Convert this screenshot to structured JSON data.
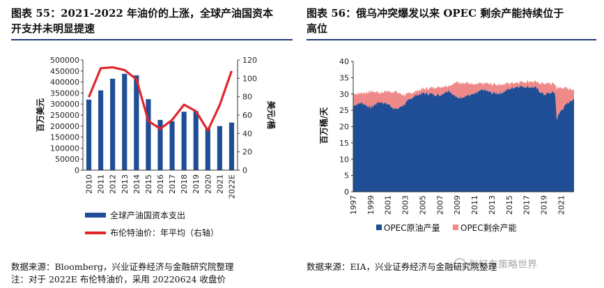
{
  "left": {
    "title": "图表 55：2021-2022 年油价的上涨，全球产油国资本开支并未明显提速",
    "title_line1": "图表 55：2021-2022 年油价的上涨，全球产油国资本",
    "title_line2": "开支并未明显提速",
    "source_line1": "数据来源：Bloomberg，兴业证券经济与金融研究院整理",
    "source_line2": "注：对于 2022E 布伦特油价，采用 20220624 收盘价"
  },
  "right": {
    "title_line1": "图表 56：俄乌冲突爆发以来 OPEC 剩余产能持续位于",
    "title_line2": "高位",
    "source_line1": "数据来源：EIA，兴业证券经济与金融研究院整理"
  },
  "watermark": "张忆东策略世界",
  "colors": {
    "bar": "#1f4e96",
    "line": "#e0242c",
    "opec_output": "#1f4e96",
    "opec_spare": "#f08a8a",
    "rule": "#1f3b73"
  },
  "chart_data": [
    {
      "type": "bar",
      "categories": [
        "2010",
        "2011",
        "2012",
        "2013",
        "2014",
        "2015",
        "2016",
        "2017",
        "2018",
        "2019",
        "2020",
        "2021",
        "2022E"
      ],
      "series": [
        {
          "name": "全球产油国资本支出",
          "axis": "left",
          "type": "bar",
          "values": [
            320000,
            362000,
            415000,
            437000,
            430000,
            322000,
            228000,
            222000,
            265000,
            268000,
            192000,
            200000,
            216000
          ]
        },
        {
          "name": "布伦特油价：年平均（右轴）",
          "axis": "right",
          "type": "line",
          "values": [
            79.5,
            111,
            112,
            109,
            99,
            53.6,
            45,
            54.7,
            71.3,
            64.2,
            43.2,
            70.9,
            108
          ]
        }
      ],
      "ylabel": "百万美元",
      "y2label": "美元/桶",
      "ylim": [
        0,
        500000
      ],
      "y2lim": [
        0,
        120
      ],
      "yticks": [
        "0",
        "50000",
        "100000",
        "150000",
        "200000",
        "250000",
        "300000",
        "350000",
        "400000",
        "450000",
        "500000"
      ],
      "y2ticks": [
        "0",
        "20",
        "40",
        "60",
        "80",
        "100",
        "120"
      ],
      "legend_placement": "bottom"
    },
    {
      "type": "area",
      "stacked": true,
      "x_start": 1997,
      "x_end": 2022.5,
      "xticks": [
        "1997",
        "1999",
        "2001",
        "2003",
        "2005",
        "2007",
        "2009",
        "2011",
        "2013",
        "2015",
        "2017",
        "2019",
        "2021"
      ],
      "ylabel": "百万桶/天",
      "ylim": [
        0,
        40
      ],
      "yticks": [
        "0",
        "5",
        "10",
        "15",
        "20",
        "25",
        "30",
        "35",
        "40"
      ],
      "legend_placement": "bottom",
      "series": [
        {
          "name": "OPEC原油产量",
          "points": [
            [
              1997,
              26.5
            ],
            [
              1998,
              27.3
            ],
            [
              1999,
              25.8
            ],
            [
              2000,
              27.6
            ],
            [
              2001,
              26.9
            ],
            [
              2002,
              25.2
            ],
            [
              2003,
              27.0
            ],
            [
              2004,
              29.3
            ],
            [
              2005,
              30.2
            ],
            [
              2006,
              30.0
            ],
            [
              2007,
              29.6
            ],
            [
              2008,
              31.2
            ],
            [
              2009,
              28.7
            ],
            [
              2010,
              29.4
            ],
            [
              2011,
              29.9
            ],
            [
              2012,
              31.3
            ],
            [
              2013,
              30.3
            ],
            [
              2014,
              30.2
            ],
            [
              2015,
              31.5
            ],
            [
              2016,
              32.4
            ],
            [
              2017,
              32.2
            ],
            [
              2018,
              32.0
            ],
            [
              2019,
              29.8
            ],
            [
              2020.3,
              30.6
            ],
            [
              2020.5,
              22.3
            ],
            [
              2021,
              25.0
            ],
            [
              2021.8,
              27.2
            ],
            [
              2022.5,
              28.8
            ]
          ]
        },
        {
          "name": "OPEC剩余产能",
          "points": [
            [
              1997,
              3.6
            ],
            [
              1998,
              3.0
            ],
            [
              1999,
              5.0
            ],
            [
              2000,
              2.8
            ],
            [
              2001,
              4.0
            ],
            [
              2002,
              5.5
            ],
            [
              2003,
              2.6
            ],
            [
              2004,
              1.3
            ],
            [
              2005,
              1.4
            ],
            [
              2006,
              1.9
            ],
            [
              2007,
              2.5
            ],
            [
              2008,
              1.5
            ],
            [
              2009,
              4.8
            ],
            [
              2010,
              4.2
            ],
            [
              2011,
              2.9
            ],
            [
              2012,
              1.9
            ],
            [
              2013,
              2.7
            ],
            [
              2014,
              2.7
            ],
            [
              2015,
              1.7
            ],
            [
              2016,
              1.4
            ],
            [
              2017,
              1.7
            ],
            [
              2018,
              1.7
            ],
            [
              2019,
              3.3
            ],
            [
              2020.3,
              2.5
            ],
            [
              2020.5,
              9.4
            ],
            [
              2021,
              7.0
            ],
            [
              2021.8,
              4.4
            ],
            [
              2022.5,
              2.9
            ]
          ]
        }
      ]
    }
  ]
}
